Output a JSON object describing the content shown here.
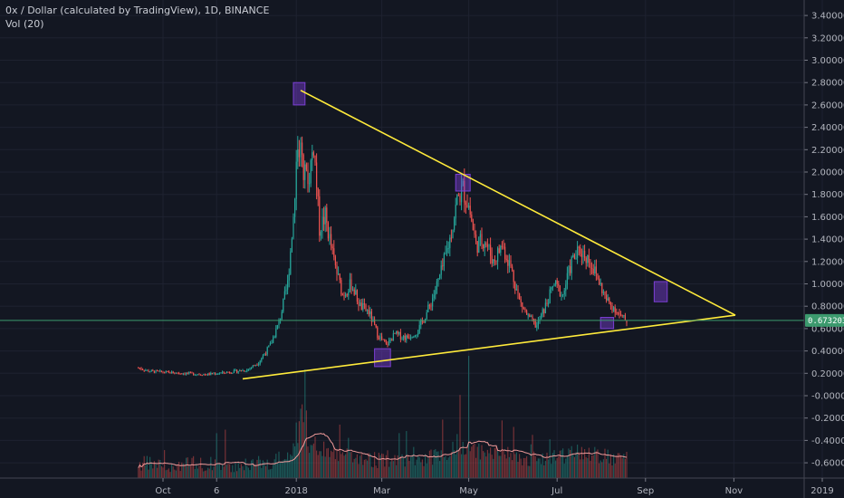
{
  "header": {
    "symbol_line": "0x / Dollar (calculated by TradingView), 1D, BINANCE",
    "volume_line": "Vol (20)"
  },
  "current_price": "0.673203",
  "colors": {
    "background": "#131722",
    "up": "#26a69a",
    "down": "#ef5350",
    "trendline": "#ffeb3b",
    "box": "#7b3fd4",
    "grid": "#1e2230",
    "price_line": "#3c9a6e",
    "price_tag": "#3c9a6e",
    "volume_ma": "#ef9a9a"
  },
  "chart_data": {
    "type": "candlestick",
    "y_tick_labels": [
      "3.400000",
      "3.200000",
      "3.000000",
      "2.800000",
      "2.600000",
      "2.400000",
      "2.200000",
      "2.000000",
      "1.800000",
      "1.600000",
      "1.400000",
      "1.200000",
      "1.000000",
      "0.800000",
      "0.600000",
      "0.400000",
      "0.200000",
      "-0.000000",
      "-0.200000",
      "-0.400000",
      "-0.600000"
    ],
    "y_tick_values": [
      3.4,
      3.2,
      3.0,
      2.8,
      2.6,
      2.4,
      2.2,
      2.0,
      1.8,
      1.6,
      1.4,
      1.2,
      1.0,
      0.8,
      0.6,
      0.4,
      0.2,
      0.0,
      -0.2,
      -0.4,
      -0.6
    ],
    "x_tick_labels": [
      "Oct",
      "6",
      "2018",
      "Mar",
      "May",
      "Jul",
      "Sep",
      "Nov",
      "2019"
    ],
    "x_tick_days": [
      0,
      37,
      92,
      151,
      211,
      272,
      333,
      394,
      455
    ],
    "x_axis_start": "2017-10-01",
    "anchors": [
      [
        -17,
        0.25
      ],
      [
        -10,
        0.22
      ],
      [
        0,
        0.21
      ],
      [
        15,
        0.2
      ],
      [
        30,
        0.19
      ],
      [
        45,
        0.21
      ],
      [
        58,
        0.23
      ],
      [
        66,
        0.3
      ],
      [
        74,
        0.45
      ],
      [
        80,
        0.65
      ],
      [
        86,
        1.0
      ],
      [
        90,
        1.6
      ],
      [
        93,
        2.3
      ],
      [
        96,
        2.1
      ],
      [
        100,
        1.9
      ],
      [
        104,
        2.25
      ],
      [
        108,
        1.5
      ],
      [
        112,
        1.6
      ],
      [
        118,
        1.2
      ],
      [
        124,
        0.9
      ],
      [
        130,
        1.0
      ],
      [
        136,
        0.8
      ],
      [
        142,
        0.75
      ],
      [
        148,
        0.55
      ],
      [
        154,
        0.45
      ],
      [
        160,
        0.55
      ],
      [
        168,
        0.52
      ],
      [
        176,
        0.58
      ],
      [
        184,
        0.8
      ],
      [
        192,
        1.1
      ],
      [
        198,
        1.4
      ],
      [
        203,
        1.75
      ],
      [
        207,
        1.85
      ],
      [
        211,
        1.7
      ],
      [
        216,
        1.35
      ],
      [
        222,
        1.4
      ],
      [
        228,
        1.2
      ],
      [
        234,
        1.35
      ],
      [
        240,
        1.15
      ],
      [
        246,
        0.85
      ],
      [
        252,
        0.7
      ],
      [
        258,
        0.62
      ],
      [
        264,
        0.8
      ],
      [
        270,
        1.0
      ],
      [
        276,
        0.9
      ],
      [
        282,
        1.2
      ],
      [
        288,
        1.3
      ],
      [
        294,
        1.22
      ],
      [
        300,
        1.05
      ],
      [
        306,
        0.85
      ],
      [
        312,
        0.78
      ],
      [
        316,
        0.7
      ],
      [
        320,
        0.67
      ]
    ],
    "trendlines": [
      {
        "name": "upper",
        "from": [
          95,
          2.73
        ],
        "to": [
          395,
          0.72
        ]
      },
      {
        "name": "lower",
        "from": [
          55,
          0.15
        ],
        "to": [
          395,
          0.72
        ]
      }
    ],
    "boxes": [
      {
        "name": "peak-box",
        "x": [
          90,
          98
        ],
        "y": [
          2.6,
          2.8
        ]
      },
      {
        "name": "low-box",
        "x": [
          146,
          157
        ],
        "y": [
          0.26,
          0.42
        ]
      },
      {
        "name": "may-box",
        "x": [
          202,
          212
        ],
        "y": [
          1.83,
          1.98
        ]
      },
      {
        "name": "right-box",
        "x": [
          302,
          311
        ],
        "y": [
          0.6,
          0.7
        ]
      },
      {
        "name": "target-box",
        "x": [
          339,
          348
        ],
        "y": [
          0.84,
          1.02
        ]
      }
    ]
  }
}
